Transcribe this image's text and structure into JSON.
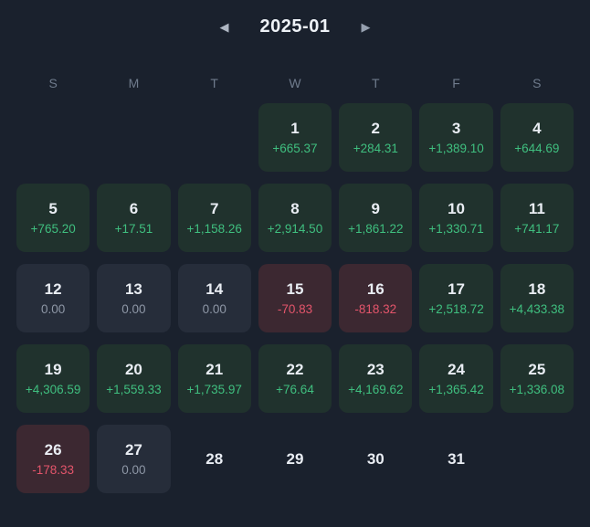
{
  "header": {
    "title": "2025-01",
    "prev_icon": "◀",
    "next_icon": "▶"
  },
  "weekdays": [
    "S",
    "M",
    "T",
    "W",
    "T",
    "F",
    "S"
  ],
  "calendar": {
    "cells": [
      {
        "type": "blank"
      },
      {
        "type": "blank"
      },
      {
        "type": "blank"
      },
      {
        "day": "1",
        "value": "+665.37",
        "type": "profit"
      },
      {
        "day": "2",
        "value": "+284.31",
        "type": "profit"
      },
      {
        "day": "3",
        "value": "+1,389.10",
        "type": "profit"
      },
      {
        "day": "4",
        "value": "+644.69",
        "type": "profit"
      },
      {
        "day": "5",
        "value": "+765.20",
        "type": "profit"
      },
      {
        "day": "6",
        "value": "+17.51",
        "type": "profit"
      },
      {
        "day": "7",
        "value": "+1,158.26",
        "type": "profit"
      },
      {
        "day": "8",
        "value": "+2,914.50",
        "type": "profit"
      },
      {
        "day": "9",
        "value": "+1,861.22",
        "type": "profit"
      },
      {
        "day": "10",
        "value": "+1,330.71",
        "type": "profit"
      },
      {
        "day": "11",
        "value": "+741.17",
        "type": "profit"
      },
      {
        "day": "12",
        "value": "0.00",
        "type": "zero"
      },
      {
        "day": "13",
        "value": "0.00",
        "type": "zero"
      },
      {
        "day": "14",
        "value": "0.00",
        "type": "zero"
      },
      {
        "day": "15",
        "value": "-70.83",
        "type": "loss"
      },
      {
        "day": "16",
        "value": "-818.32",
        "type": "loss"
      },
      {
        "day": "17",
        "value": "+2,518.72",
        "type": "profit"
      },
      {
        "day": "18",
        "value": "+4,433.38",
        "type": "profit"
      },
      {
        "day": "19",
        "value": "+4,306.59",
        "type": "profit"
      },
      {
        "day": "20",
        "value": "+1,559.33",
        "type": "profit"
      },
      {
        "day": "21",
        "value": "+1,735.97",
        "type": "profit"
      },
      {
        "day": "22",
        "value": "+76.64",
        "type": "profit"
      },
      {
        "day": "23",
        "value": "+4,169.62",
        "type": "profit"
      },
      {
        "day": "24",
        "value": "+1,365.42",
        "type": "profit"
      },
      {
        "day": "25",
        "value": "+1,336.08",
        "type": "profit"
      },
      {
        "day": "26",
        "value": "-178.33",
        "type": "loss"
      },
      {
        "day": "27",
        "value": "0.00",
        "type": "zero"
      },
      {
        "day": "28",
        "type": "plain"
      },
      {
        "day": "29",
        "type": "plain"
      },
      {
        "day": "30",
        "type": "plain"
      },
      {
        "day": "31",
        "type": "plain"
      },
      {
        "type": "blank"
      }
    ]
  },
  "colors": {
    "background": "#1a212d",
    "profit_bg": "#20322d",
    "profit_text": "#3fbf7f",
    "loss_bg": "#3c2831",
    "loss_text": "#e4556b",
    "zero_bg": "#262d3a",
    "zero_text": "#8e97a6"
  }
}
